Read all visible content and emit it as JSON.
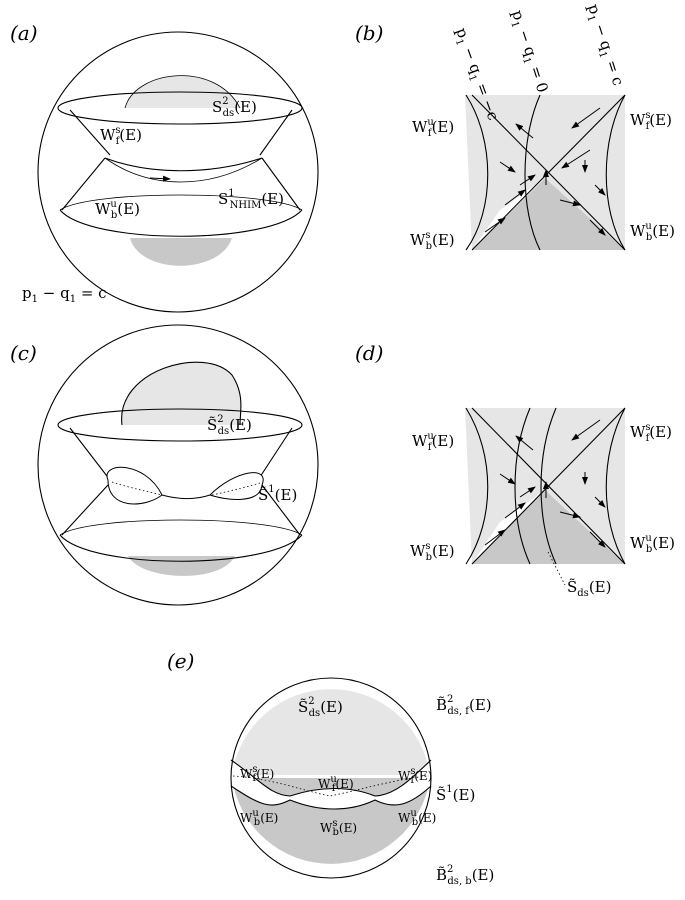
{
  "panels": {
    "a": {
      "label": "(a)",
      "S_ds": "S²ds (E)",
      "W_fs": "Wsf (E)",
      "W_bu": "Wub (E)",
      "S_NHIM": "S¹NHIM (E)",
      "level": "p1 − q1 = c"
    },
    "b": {
      "label": "(b)",
      "curve_left": "p1 − q1 = −c",
      "curve_mid": "p1 − q1 = 0",
      "curve_right": "p1 − q1 = c",
      "W_fu": "Wuf (E)",
      "W_fs": "Wsf (E)",
      "W_bs": "Wsb (E)",
      "W_bu": "Wub (E)"
    },
    "c": {
      "label": "(c)",
      "S_ds": "S̃²ds (E)",
      "S1": "S̃¹(E)"
    },
    "d": {
      "label": "(d)",
      "W_fu": "Wuf (E)",
      "W_fs": "Wsf (E)",
      "W_bs": "Wsb (E)",
      "W_bu": "Wub (E)",
      "S_ds": "S̃ds (E)"
    },
    "e": {
      "label": "(e)",
      "S_ds": "S̃²ds (E)",
      "B_f": "B̃²ds, f (E)",
      "S1": "S̃¹(E)",
      "B_b": "B̃²ds, b (E)",
      "W_fs_left": "Wsf (E)",
      "W_fu_mid": "Wuf (E)",
      "W_fs_right": "Wsf (E)",
      "W_bu_left": "Wub (E)",
      "W_bs_mid": "Wsb (E)",
      "W_bu_right": "Wub (E)"
    }
  },
  "colors": {
    "light_gray": "#e6e6e6",
    "dark_gray": "#c8c8c8",
    "line": "#000000"
  }
}
